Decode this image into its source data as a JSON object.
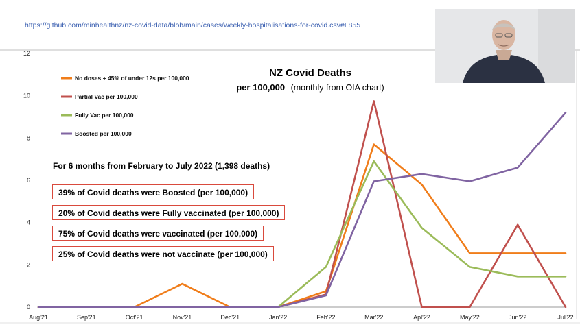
{
  "url_text": "https://github.com/minhealthnz/nz-covid-data/blob/main/cases/weekly-hospitalisations-for-covid.csv#L855",
  "webcam": {
    "icon": "presenter-video-feed-icon"
  },
  "chart_data": {
    "type": "line",
    "title": "NZ Covid Deaths",
    "subtitle_bold": "per 100,000",
    "subtitle": "(monthly from OIA chart)",
    "categories": [
      "Aug'21",
      "Sep'21",
      "Oct'21",
      "Nov'21",
      "Dec'21",
      "Jan'22",
      "Feb'22",
      "Mar'22",
      "Apl'22",
      "May'22",
      "Jun'22",
      "Jul'22"
    ],
    "ylim": [
      0,
      12
    ],
    "yticks": [
      0,
      2,
      4,
      6,
      8,
      10,
      12
    ],
    "legend_position": "top-left",
    "series": [
      {
        "name": "No doses + 45% of under 12s per 100,000",
        "color": "#f07d1a",
        "values": [
          0,
          0,
          0,
          1.1,
          0,
          0,
          0.75,
          7.7,
          5.8,
          2.55,
          2.55,
          2.55
        ]
      },
      {
        "name": "Partial Vac per 100,000",
        "color": "#c0504d",
        "values": [
          0,
          0,
          0,
          0,
          0,
          0,
          0.6,
          9.75,
          0,
          0,
          3.9,
          0
        ]
      },
      {
        "name": "Fully Vac per 100,000",
        "color": "#9bbb59",
        "values": [
          0,
          0,
          0,
          0,
          0,
          0,
          1.9,
          6.9,
          3.75,
          1.9,
          1.45,
          1.45
        ]
      },
      {
        "name": "Boosted per 100,000",
        "color": "#8064a2",
        "values": [
          0,
          0,
          0,
          0,
          0,
          0,
          0.55,
          5.95,
          6.3,
          5.95,
          6.6,
          9.2
        ]
      }
    ],
    "annotations": {
      "period": "For 6 months from February to July 2022 (1,398 deaths)",
      "stats": [
        "39% of Covid deaths were Boosted (per 100,000)",
        "20% of Covid deaths were Fully vaccinated (per 100,000)",
        "75% of Covid deaths were vaccinated (per 100,000)",
        "25% of Covid deaths were not vaccinate (per 100,000)"
      ]
    }
  }
}
